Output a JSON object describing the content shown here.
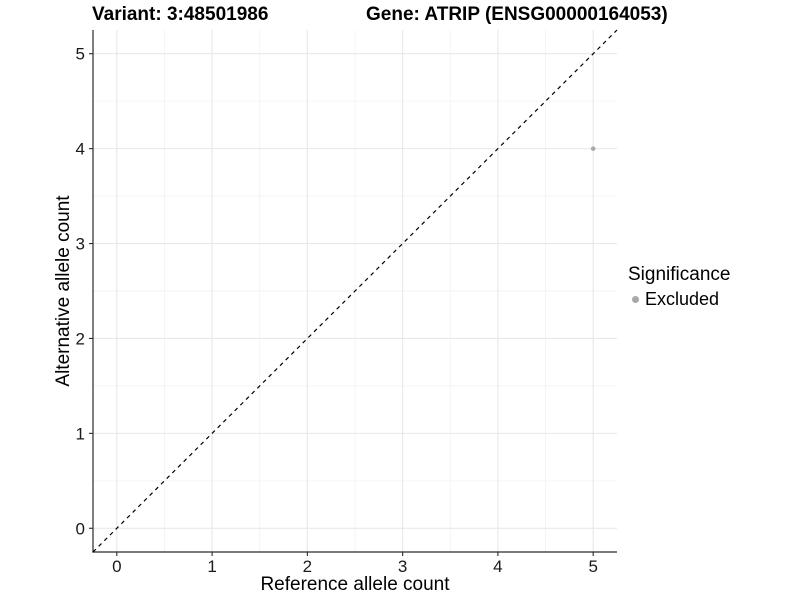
{
  "chart_data": {
    "type": "scatter",
    "titles": [
      "Variant: 3:48501986",
      "Gene: ATRIP (ENSG00000164053)"
    ],
    "xlabel": "Reference allele count",
    "ylabel": "Alternative allele count",
    "xlim": [
      -0.25,
      5.25
    ],
    "ylim": [
      -0.25,
      5.25
    ],
    "xticks": [
      0,
      1,
      2,
      3,
      4,
      5
    ],
    "yticks": [
      0,
      1,
      2,
      3,
      4,
      5
    ],
    "grid": true,
    "legend_position": "right",
    "series": [
      {
        "name": "Excluded",
        "points": [
          {
            "x": 5,
            "y": 4
          }
        ],
        "color": "#a9a9a9"
      }
    ],
    "identity_line": {
      "slope": 1,
      "intercept": 0,
      "style": "dashed",
      "color": "#000000"
    },
    "legend": {
      "title": "Significance",
      "items": [
        {
          "label": "Excluded",
          "color": "#a9a9a9"
        }
      ]
    }
  },
  "colors": {
    "background": "#ffffff",
    "grid_major": "#e8e8e8",
    "grid_minor": "#f3f3f3",
    "axis_line": "#2a2a2a",
    "tick_label": "#1a1a1a"
  }
}
